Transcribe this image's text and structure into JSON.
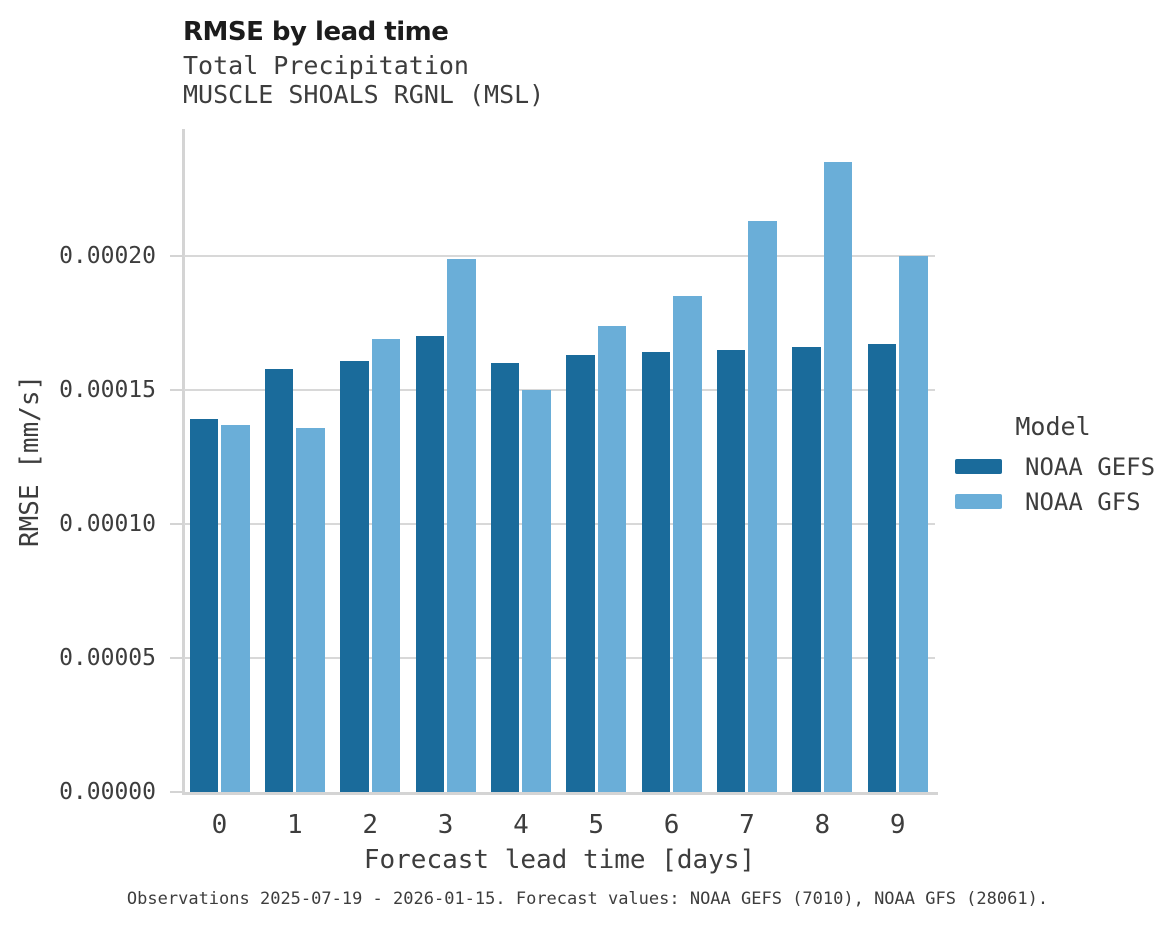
{
  "header": {
    "title": "RMSE by lead time",
    "subtitle_line1": "Total Precipitation",
    "subtitle_line2": "MUSCLE SHOALS RGNL (MSL)"
  },
  "caption": "Observations 2025-07-19 - 2026-01-15. Forecast values: NOAA GEFS (7010), NOAA GFS (28061).",
  "legend": {
    "title": "Model",
    "entries": [
      {
        "label": "NOAA GEFS",
        "color": "#1a6b9b"
      },
      {
        "label": "NOAA GFS",
        "color": "#6aaed8"
      }
    ]
  },
  "colors": {
    "gefs_bar": "#1a6b9b",
    "gfs_bar": "#6aaed8",
    "gridline": "#d8d8d8",
    "axis": "#d4d4d4",
    "text": "#3d3d3d",
    "title_text": "#1c1c1c"
  },
  "chart_data": {
    "type": "bar",
    "title": "RMSE by lead time",
    "subtitle": [
      "Total Precipitation",
      "MUSCLE SHOALS RGNL (MSL)"
    ],
    "xlabel": "Forecast lead time [days]",
    "ylabel": "RMSE [mm/s]",
    "categories": [
      "0",
      "1",
      "2",
      "3",
      "4",
      "5",
      "6",
      "7",
      "8",
      "9"
    ],
    "series": [
      {
        "name": "NOAA GEFS",
        "color": "#1a6b9b",
        "values": [
          0.000139,
          0.000158,
          0.000161,
          0.00017,
          0.00016,
          0.000163,
          0.000164,
          0.000165,
          0.000166,
          0.000167
        ]
      },
      {
        "name": "NOAA GFS",
        "color": "#6aaed8",
        "values": [
          0.000137,
          0.000136,
          0.000169,
          0.000199,
          0.00015,
          0.000174,
          0.000185,
          0.000213,
          0.000235,
          0.0002
        ]
      }
    ],
    "ylim": [
      0,
      0.000248
    ],
    "yticks": [
      0,
      5e-05,
      0.0001,
      0.00015,
      0.0002
    ],
    "ytick_labels": [
      "0.00000",
      "0.00005",
      "0.00010",
      "0.00015",
      "0.00020"
    ],
    "grid": "horizontal-only",
    "legend_position": "right"
  }
}
